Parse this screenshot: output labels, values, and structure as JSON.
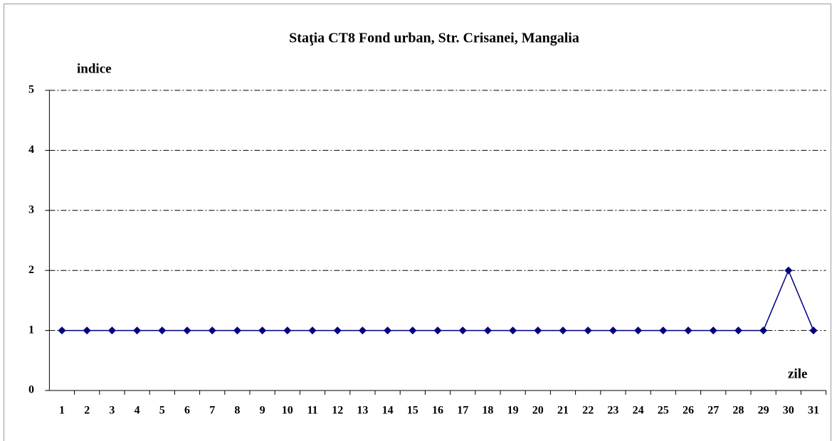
{
  "chart_data": {
    "type": "line",
    "title": "Staţia CT8 Fond urban, Str. Crisanei, Mangalia",
    "y_label": "indice",
    "x_label": "zile",
    "categories": [
      1,
      2,
      3,
      4,
      5,
      6,
      7,
      8,
      9,
      10,
      11,
      12,
      13,
      14,
      15,
      16,
      17,
      18,
      19,
      20,
      21,
      22,
      23,
      24,
      25,
      26,
      27,
      28,
      29,
      30,
      31
    ],
    "series": [
      {
        "name": "indice",
        "color": "#000080",
        "values": [
          1,
          1,
          1,
          1,
          1,
          1,
          1,
          1,
          1,
          1,
          1,
          1,
          1,
          1,
          1,
          1,
          1,
          1,
          1,
          1,
          1,
          1,
          1,
          1,
          1,
          1,
          1,
          1,
          1,
          2,
          1
        ]
      }
    ],
    "ylim": [
      0,
      5
    ],
    "yticks": [
      0,
      1,
      2,
      3,
      4,
      5
    ],
    "grid": true
  }
}
